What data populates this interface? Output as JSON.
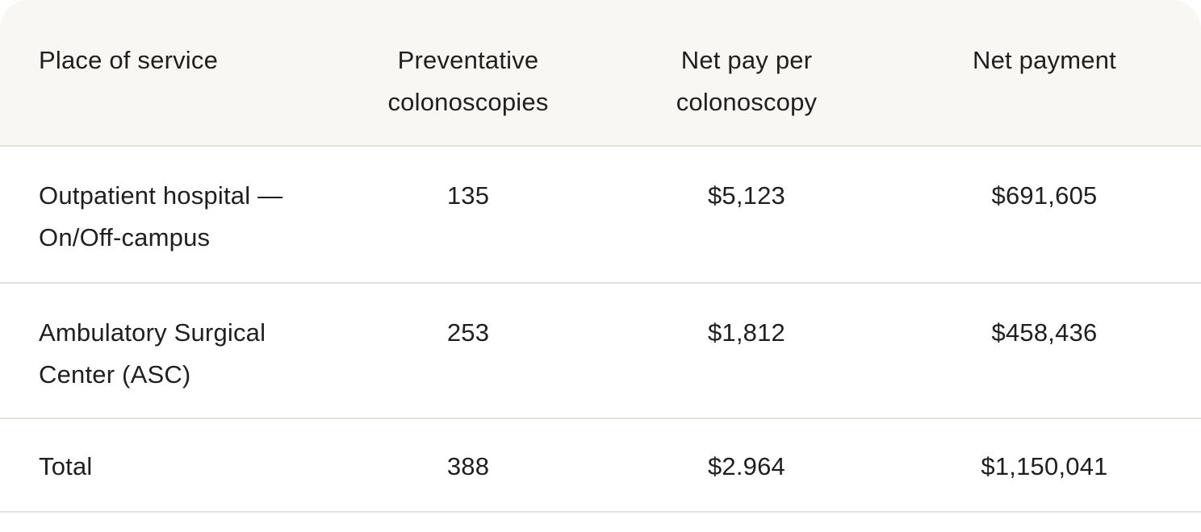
{
  "table": {
    "headers": [
      "Place of service",
      "Preventative colonoscopies",
      "Net pay per colonoscopy",
      "Net payment"
    ],
    "rows": [
      {
        "place": "Outpatient hospital — On/Off-campus",
        "colonoscopies": "135",
        "net_pay_per": "$5,123",
        "net_payment": "$691,605"
      },
      {
        "place": "Ambulatory Surgical Center (ASC)",
        "colonoscopies": "253",
        "net_pay_per": "$1,812",
        "net_payment": "$458,436"
      },
      {
        "place": "Total",
        "colonoscopies": "388",
        "net_pay_per": "$2.964",
        "net_payment": "$1,150,041"
      }
    ]
  },
  "colors": {
    "header_bg": "#f8f7f4",
    "divider": "#e3e2dc",
    "text": "#1f1f1f"
  }
}
